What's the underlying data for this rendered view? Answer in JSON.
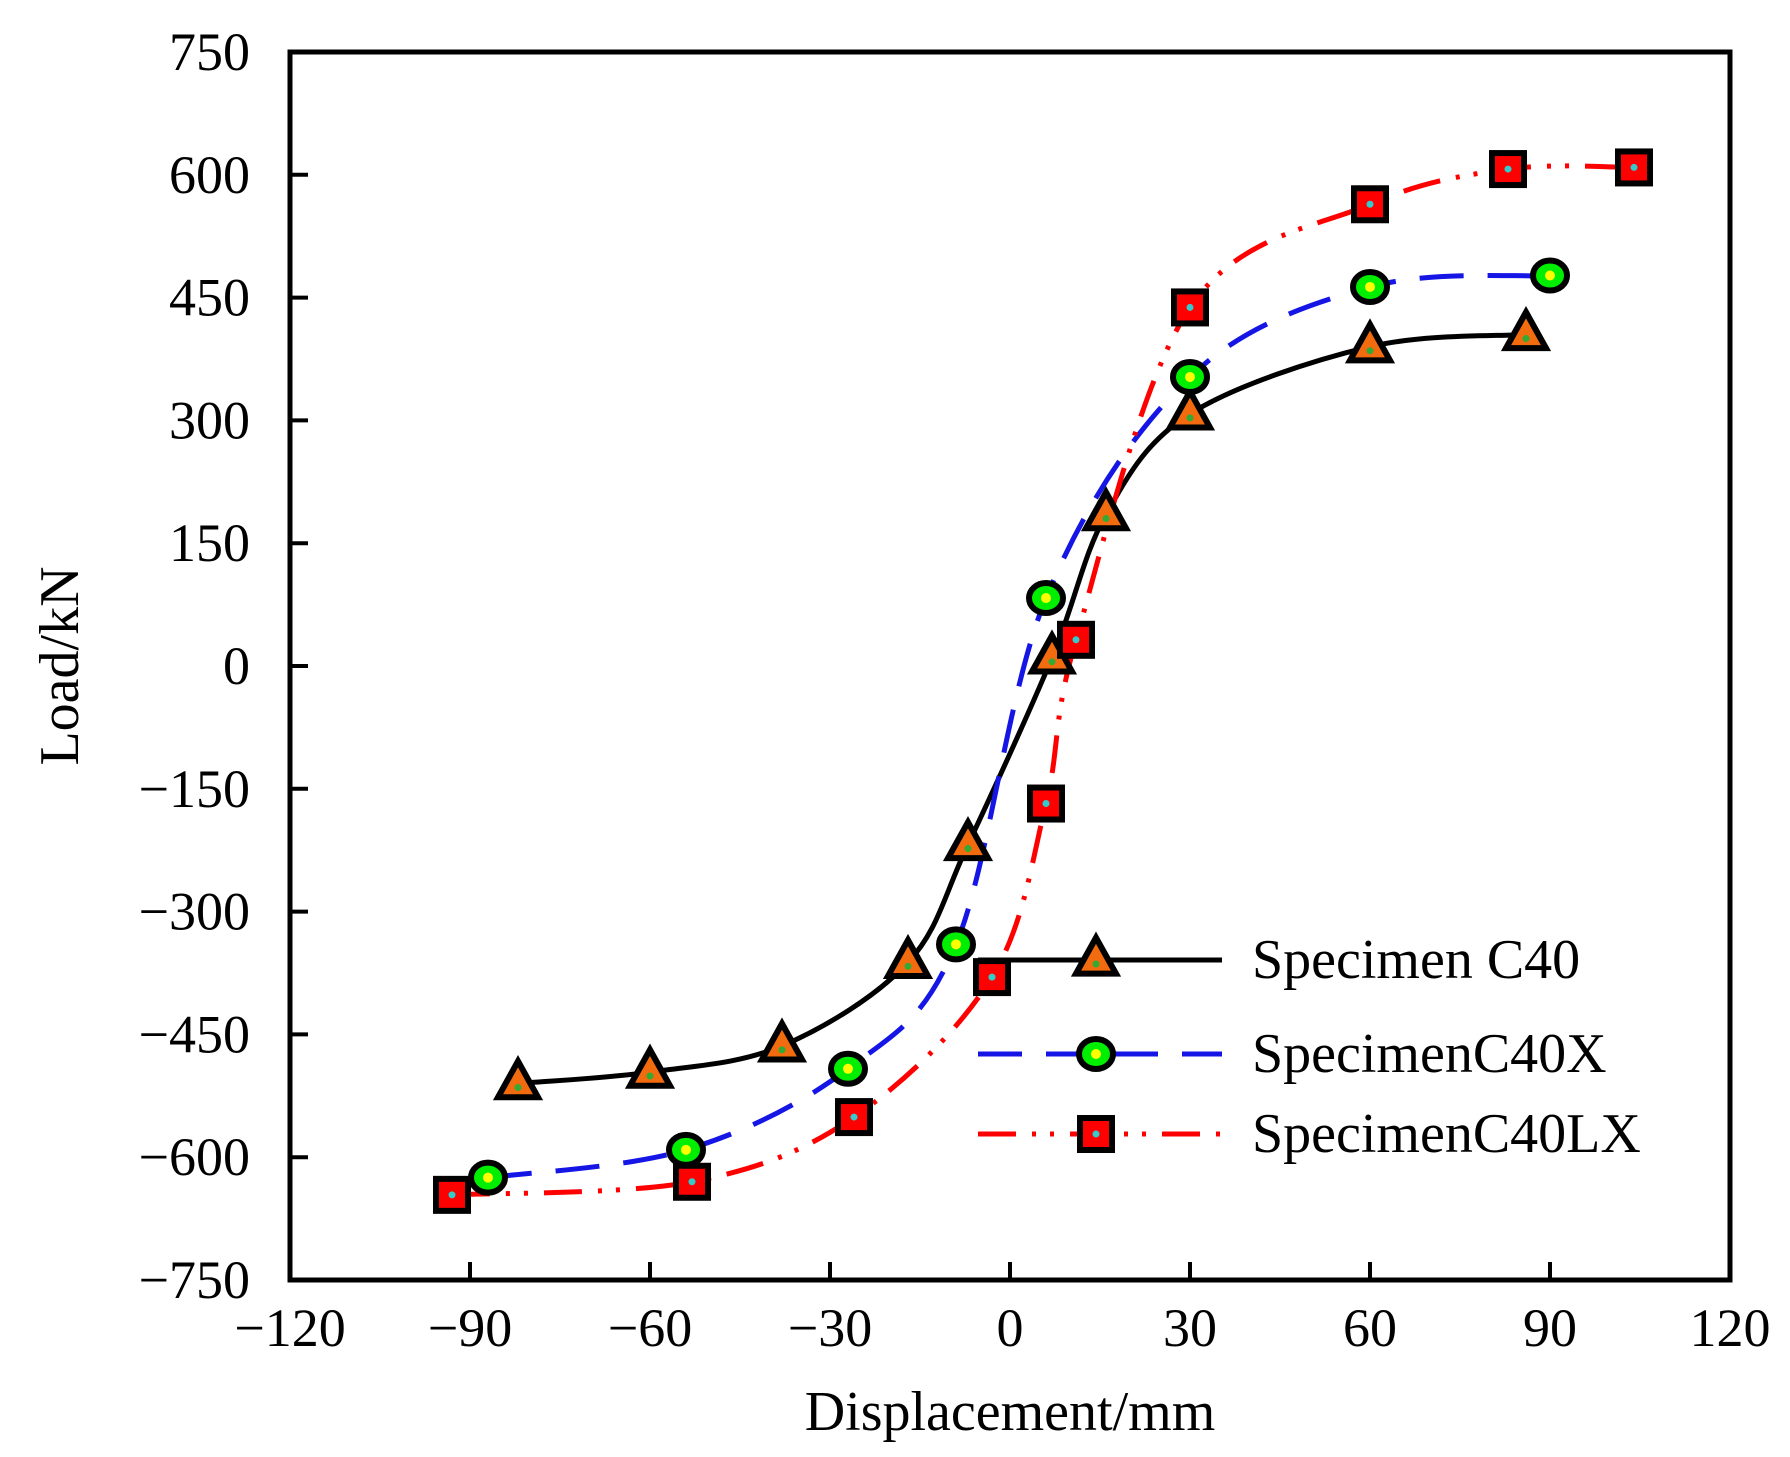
{
  "chart_data": {
    "type": "line",
    "title": "",
    "xlabel": "Displacement/mm",
    "ylabel": "Load/kN",
    "xlim": [
      -120,
      120
    ],
    "ylim": [
      -750,
      750
    ],
    "xticks": [
      -120,
      -90,
      -60,
      -30,
      0,
      30,
      60,
      90,
      120
    ],
    "yticks": [
      750,
      600,
      450,
      300,
      150,
      0,
      -150,
      -300,
      -450,
      -600,
      -750
    ],
    "xtick_labels": [
      "−120",
      "−90",
      "−60",
      "−30",
      "0",
      "30",
      "60",
      "90",
      "120"
    ],
    "ytick_labels": [
      "750",
      "600",
      "450",
      "300",
      "150",
      "0",
      "−150",
      "−300",
      "−450",
      "−600",
      "−750"
    ],
    "grid": false,
    "legend_position": "bottom-right",
    "series": [
      {
        "name": "Specimen C40",
        "line_style": "solid",
        "line_color": "#000000",
        "marker": "triangle",
        "marker_fill": "#f26b0f",
        "marker_dot": "#33aa33",
        "x": [
          -82,
          -60,
          -38,
          -17,
          -7,
          7,
          16,
          30,
          60,
          86
        ],
        "y": [
          -510,
          -496,
          -464,
          -362,
          -218,
          10,
          185,
          308,
          390,
          405
        ]
      },
      {
        "name": "SpecimenC40X",
        "line_style": "dashed",
        "line_color": "#1515e6",
        "marker": "circle",
        "marker_fill": "#00ee00",
        "marker_dot": "#ffff00",
        "x": [
          -87,
          -54,
          -27,
          -9,
          6,
          30,
          60,
          90
        ],
        "y": [
          -625,
          -591,
          -492,
          -340,
          83,
          353,
          463,
          477
        ]
      },
      {
        "name": "SpecimenC40LX",
        "line_style": "dash-dot-dot",
        "line_color": "#ff0000",
        "marker": "square",
        "marker_fill": "#ff0000",
        "marker_dot": "#33cccc",
        "x": [
          -93,
          -53,
          -26,
          -3,
          6,
          11,
          30,
          60,
          83,
          104
        ],
        "y": [
          -646,
          -630,
          -551,
          -380,
          -168,
          32,
          438,
          564,
          607,
          609
        ]
      }
    ]
  }
}
